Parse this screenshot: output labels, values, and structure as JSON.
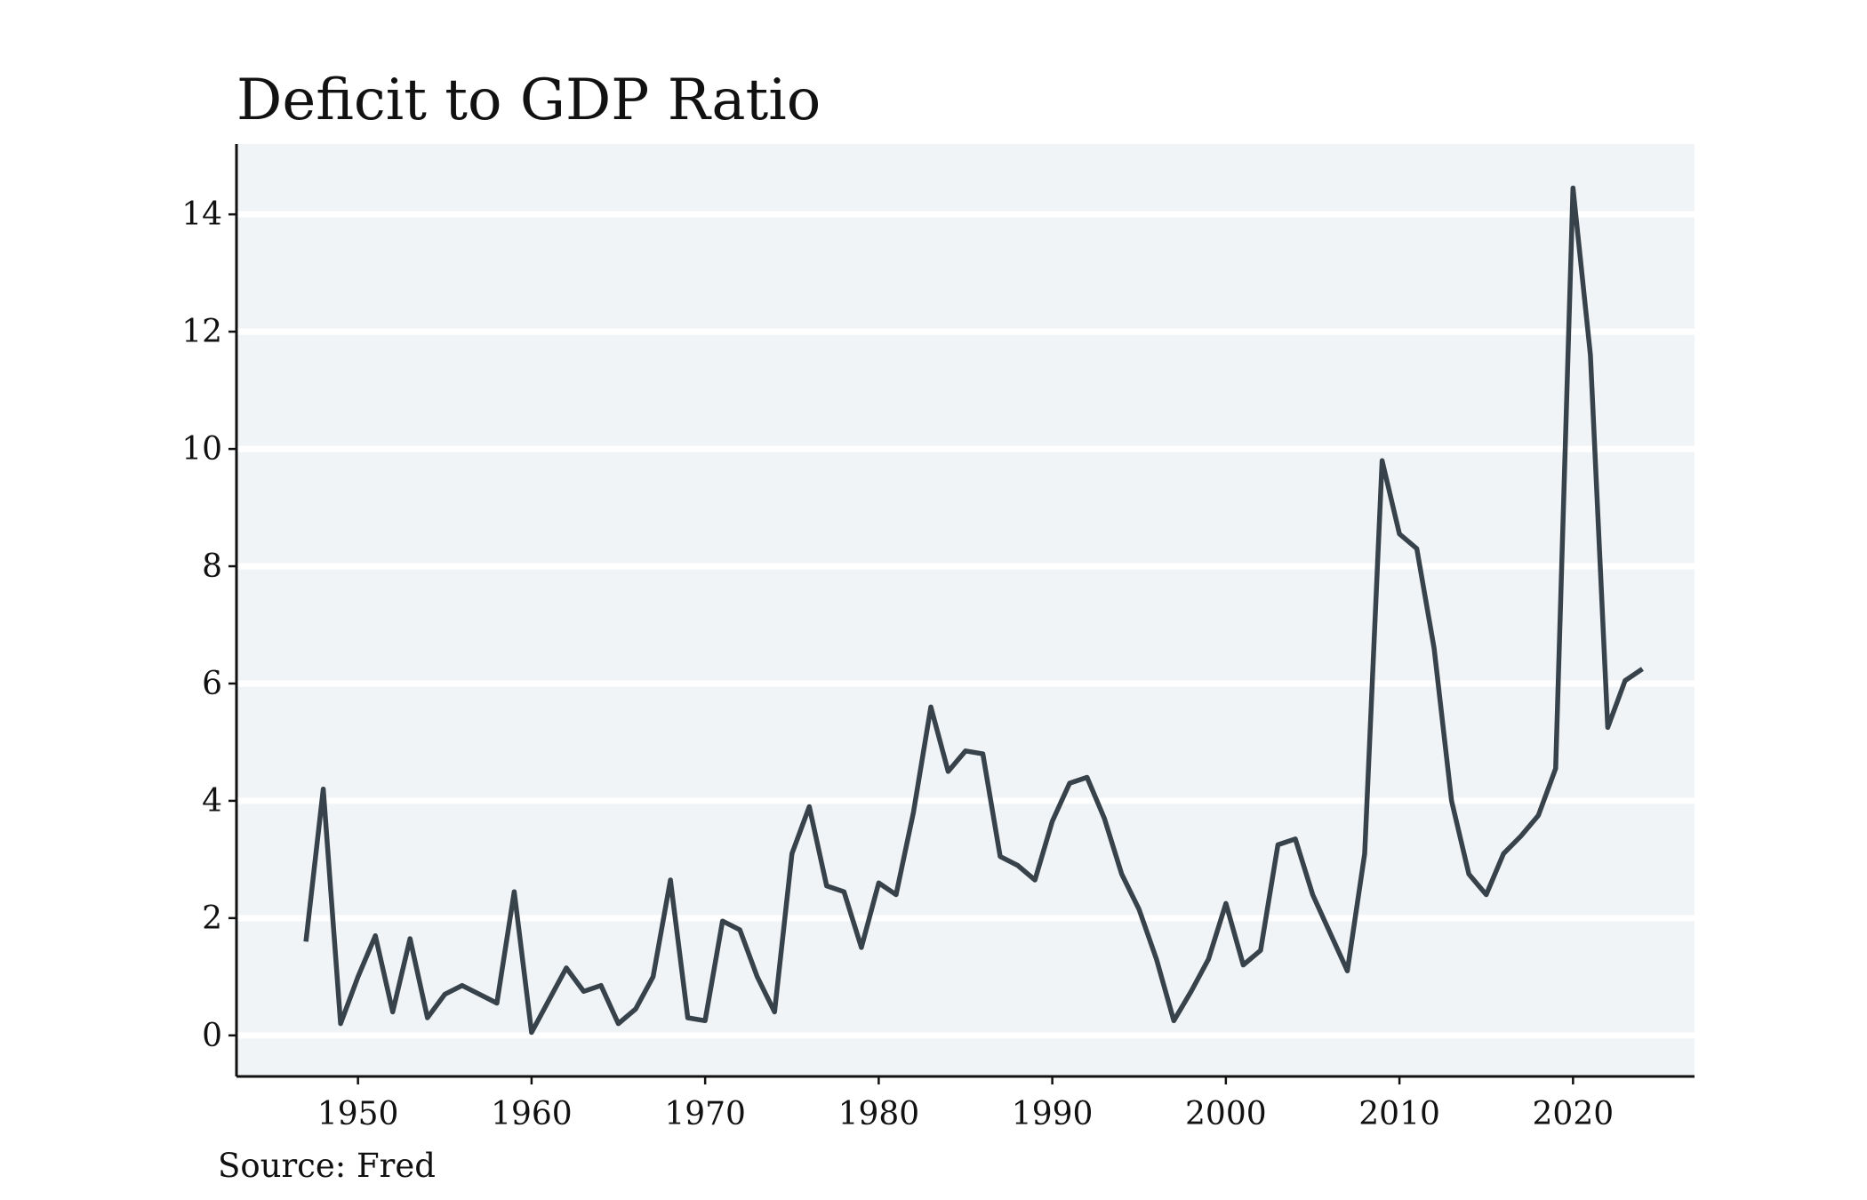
{
  "title": "Deficit to GDP Ratio",
  "source": "Source: Fred",
  "colors": {
    "line": "#37424b",
    "panel": "#f0f4f7",
    "grid": "#ffffff",
    "axis": "#111111"
  },
  "chart_data": {
    "type": "line",
    "title": "Deficit to GDP Ratio",
    "xlabel": "",
    "ylabel": "",
    "xlim": [
      1943,
      2027
    ],
    "ylim": [
      -0.7,
      15.2
    ],
    "x_ticks": [
      1950,
      1960,
      1970,
      1980,
      1990,
      2000,
      2010,
      2020
    ],
    "y_ticks": [
      0,
      2,
      4,
      6,
      8,
      10,
      12,
      14
    ],
    "grid": true,
    "legend": "none",
    "series": [
      {
        "x": [
          1947,
          1948,
          1949,
          1950,
          1951,
          1952,
          1953,
          1954,
          1955,
          1956,
          1957,
          1958,
          1959,
          1960,
          1961,
          1962,
          1963,
          1964,
          1965,
          1966,
          1967,
          1968,
          1969,
          1970,
          1971,
          1972,
          1973,
          1974,
          1975,
          1976,
          1977,
          1978,
          1979,
          1980,
          1981,
          1982,
          1983,
          1984,
          1985,
          1986,
          1987,
          1988,
          1989,
          1990,
          1991,
          1992,
          1993,
          1994,
          1995,
          1996,
          1997,
          1998,
          1999,
          2000,
          2001,
          2002,
          2003,
          2004,
          2005,
          2006,
          2007,
          2008,
          2009,
          2010,
          2011,
          2012,
          2013,
          2014,
          2015,
          2016,
          2017,
          2018,
          2019,
          2020,
          2021,
          2022,
          2023,
          2024
        ],
        "values": [
          1.6,
          4.2,
          0.2,
          1.0,
          1.7,
          0.4,
          1.65,
          0.3,
          0.7,
          0.85,
          0.7,
          0.55,
          2.45,
          0.05,
          0.6,
          1.15,
          0.75,
          0.85,
          0.2,
          0.45,
          1.0,
          2.65,
          0.3,
          0.25,
          1.95,
          1.8,
          1.0,
          0.4,
          3.1,
          3.9,
          2.55,
          2.45,
          1.5,
          2.6,
          2.4,
          3.8,
          5.6,
          4.5,
          4.85,
          4.8,
          3.05,
          2.9,
          2.65,
          3.65,
          4.3,
          4.4,
          3.7,
          2.75,
          2.15,
          1.3,
          0.25,
          0.75,
          1.3,
          2.25,
          1.2,
          1.45,
          3.25,
          3.35,
          2.4,
          1.75,
          1.1,
          3.1,
          9.8,
          8.55,
          8.3,
          6.6,
          4.0,
          2.75,
          2.4,
          3.1,
          3.4,
          3.75,
          4.55,
          14.45,
          11.6,
          5.25,
          6.05,
          6.25
        ]
      }
    ]
  }
}
